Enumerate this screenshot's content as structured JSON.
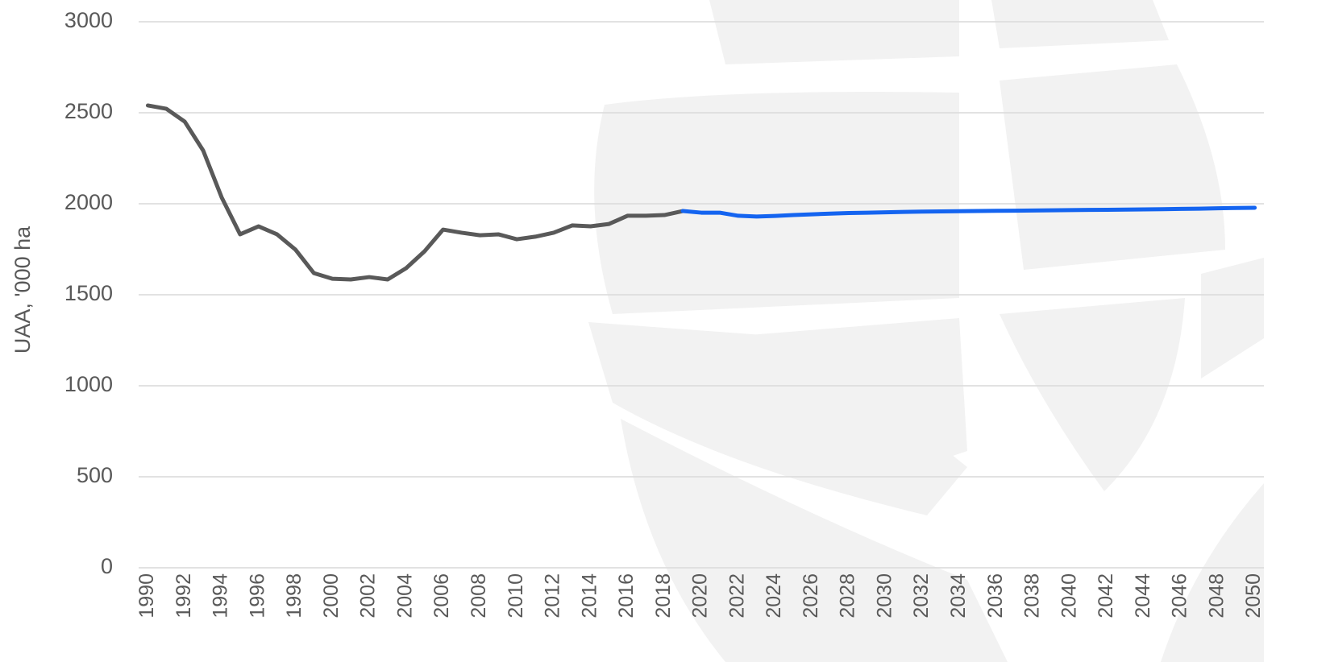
{
  "chart_data": {
    "type": "line",
    "y_label": "UAA, '000 ha",
    "x": [
      1990,
      1991,
      1992,
      1993,
      1994,
      1995,
      1996,
      1997,
      1998,
      1999,
      2000,
      2001,
      2002,
      2003,
      2004,
      2005,
      2006,
      2007,
      2008,
      2009,
      2010,
      2011,
      2012,
      2013,
      2014,
      2015,
      2016,
      2017,
      2018,
      2019,
      2020,
      2021,
      2022,
      2023,
      2024,
      2025,
      2026,
      2027,
      2028,
      2029,
      2030,
      2031,
      2032,
      2033,
      2034,
      2035,
      2036,
      2037,
      2038,
      2039,
      2040,
      2041,
      2042,
      2043,
      2044,
      2045,
      2046,
      2047,
      2048,
      2049,
      2050
    ],
    "series": [
      {
        "color": "#595959",
        "values": [
          2540,
          2522,
          2451,
          2292,
          2035,
          1832,
          1876,
          1832,
          1748,
          1619,
          1588,
          1584,
          1597,
          1584,
          1646,
          1739,
          1858,
          1841,
          1827,
          1832,
          1805,
          1819,
          1841,
          1881,
          1876,
          1889,
          1934,
          1934,
          1938,
          1960,
          null,
          null,
          null,
          null,
          null,
          null,
          null,
          null,
          null,
          null,
          null,
          null,
          null,
          null,
          null,
          null,
          null,
          null,
          null,
          null,
          null,
          null,
          null,
          null,
          null,
          null,
          null,
          null,
          null,
          null,
          null
        ]
      },
      {
        "color": "#1464f0",
        "values": [
          null,
          null,
          null,
          null,
          null,
          null,
          null,
          null,
          null,
          null,
          null,
          null,
          null,
          null,
          null,
          null,
          null,
          null,
          null,
          null,
          null,
          null,
          null,
          null,
          null,
          null,
          null,
          null,
          null,
          1960,
          1951,
          1951,
          1934,
          1930,
          1933,
          1938,
          1942,
          1946,
          1949,
          1951,
          1953,
          1955,
          1957,
          1958,
          1959,
          1960,
          1961,
          1962,
          1963,
          1964,
          1965,
          1966,
          1967,
          1968,
          1969,
          1970,
          1972,
          1973,
          1975,
          1977,
          1978
        ]
      }
    ],
    "xlim": [
      1989.5,
      2050.5
    ],
    "xticks": [
      1990,
      1992,
      1994,
      1996,
      1998,
      2000,
      2002,
      2004,
      2006,
      2008,
      2010,
      2012,
      2014,
      2016,
      2018,
      2020,
      2022,
      2024,
      2026,
      2028,
      2030,
      2032,
      2034,
      2036,
      2038,
      2040,
      2042,
      2044,
      2046,
      2048,
      2050
    ],
    "ylim": [
      0,
      3000
    ],
    "yticks": [
      0,
      500,
      1000,
      1500,
      2000,
      2500,
      3000
    ],
    "grid": true
  }
}
